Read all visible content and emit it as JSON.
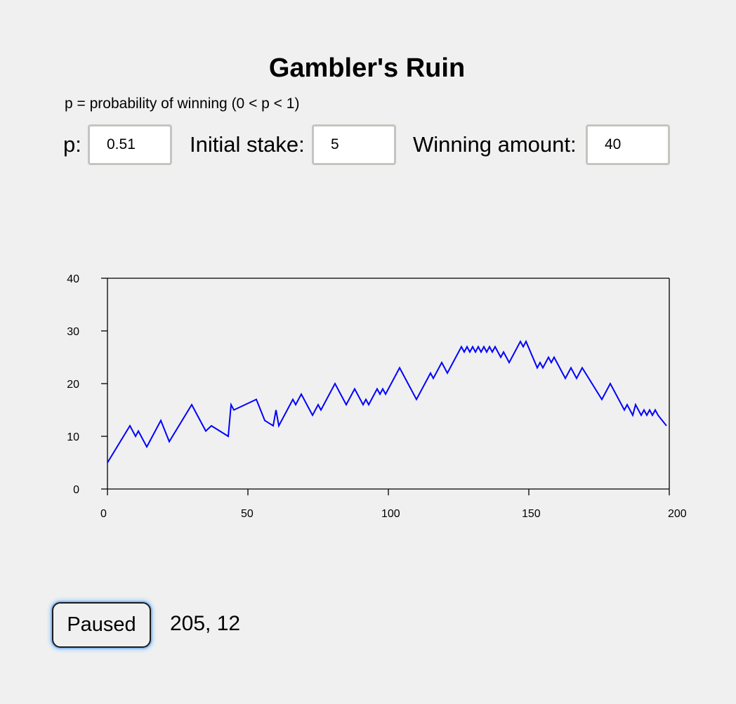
{
  "header": {
    "title": "Gambler's Ruin",
    "subtitle": "p = probability of winning (0 < p < 1)"
  },
  "controls": {
    "p_label": "p:",
    "p_value": "0.51",
    "stake_label": "Initial stake:",
    "stake_value": "5",
    "win_label": "Winning amount:",
    "win_value": "40"
  },
  "footer": {
    "button_label": "Paused",
    "status_text": "205, 12"
  },
  "colors": {
    "line": "#0000ff",
    "axis": "#000000",
    "background": "#f0f0f0"
  },
  "chart_data": {
    "type": "line",
    "xlim": [
      0,
      200
    ],
    "ylim": [
      0,
      40
    ],
    "xticks": [
      0,
      50,
      100,
      150,
      200
    ],
    "yticks": [
      0,
      10,
      20,
      30,
      40
    ],
    "grid": false,
    "x": [
      0,
      8,
      9,
      10,
      11,
      14,
      19,
      22,
      30,
      34,
      35,
      37,
      43,
      44,
      45,
      49,
      53,
      56,
      59,
      60,
      61,
      66,
      67,
      69,
      73,
      75,
      76,
      81,
      85,
      88,
      91,
      92,
      93,
      96,
      97,
      98,
      99,
      104,
      110,
      115,
      116,
      119,
      121,
      126,
      127,
      128,
      129,
      130,
      131,
      132,
      133,
      134,
      135,
      136,
      137,
      138,
      139,
      140,
      141,
      142,
      143,
      147,
      148,
      149,
      153,
      154,
      155,
      157,
      158,
      159,
      163,
      165,
      167,
      169,
      176,
      179,
      184,
      185,
      187,
      188,
      189,
      190,
      191,
      192,
      193,
      194,
      195,
      196,
      199
    ],
    "values": [
      5,
      12,
      11,
      10,
      11,
      8,
      13,
      9,
      16,
      12,
      11,
      12,
      10,
      16,
      15,
      16,
      17,
      13,
      12,
      15,
      12,
      17,
      16,
      18,
      14,
      16,
      15,
      20,
      16,
      19,
      16,
      17,
      16,
      19,
      18,
      19,
      18,
      23,
      17,
      22,
      21,
      24,
      22,
      27,
      26,
      27,
      26,
      27,
      26,
      27,
      26,
      27,
      26,
      27,
      26,
      27,
      26,
      25,
      26,
      25,
      24,
      28,
      27,
      28,
      23,
      24,
      23,
      25,
      24,
      25,
      21,
      23,
      21,
      23,
      17,
      20,
      15,
      16,
      14,
      16,
      15,
      14,
      15,
      14,
      15,
      14,
      15,
      14,
      12
    ]
  }
}
